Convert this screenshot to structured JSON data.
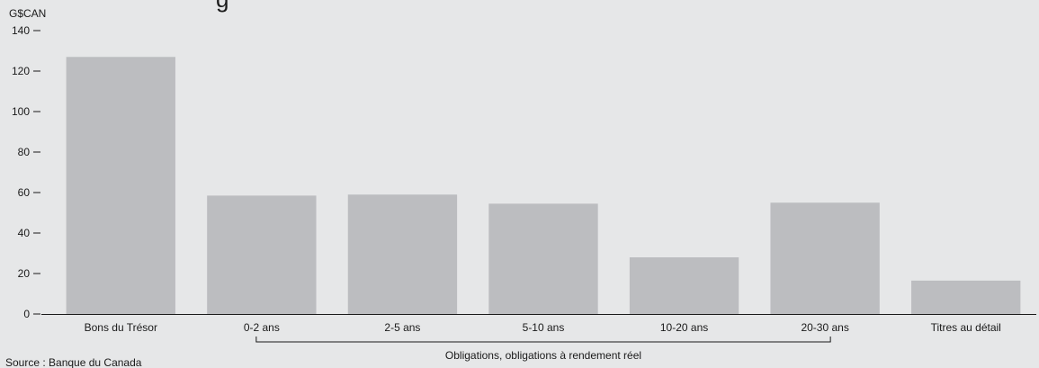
{
  "chart_data": {
    "type": "bar",
    "unit_label": "G$CAN",
    "categories": [
      "Bons du Trésor",
      "0-2 ans",
      "2-5 ans",
      "5-10 ans",
      "10-20 ans",
      "20-30 ans",
      "Titres au détail"
    ],
    "values": [
      127,
      58.5,
      59,
      54.5,
      28,
      55,
      16.5
    ],
    "ylim": [
      0,
      140
    ],
    "yticks": [
      0,
      20,
      40,
      60,
      80,
      100,
      120,
      140
    ],
    "bar_color": "#bcbdc0",
    "group_annotation": {
      "label": "Obligations, obligations à rendement réel",
      "from_category": "0-2 ans",
      "to_category": "20-30 ans"
    },
    "source": "Source : Banque du Canada",
    "grid": false
  }
}
